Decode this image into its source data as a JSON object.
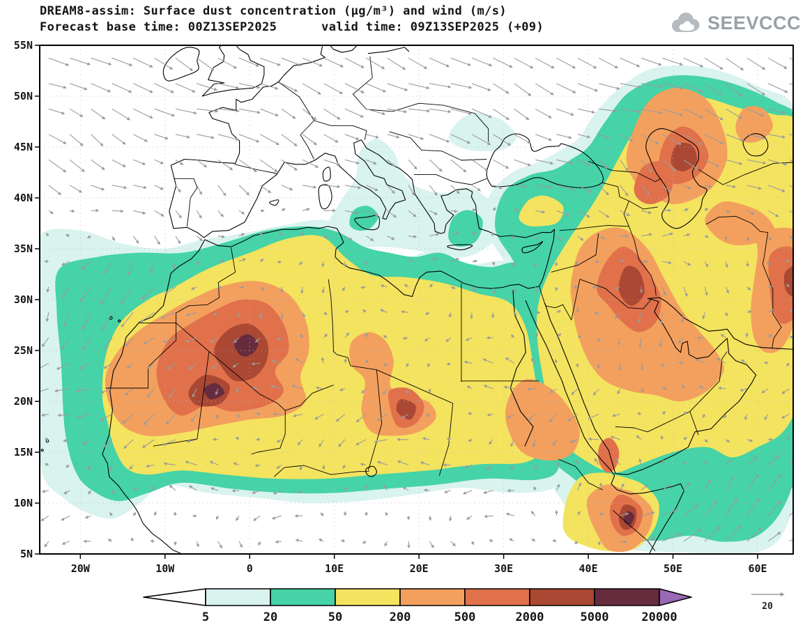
{
  "header": {
    "title_line1": "DREAM8-assim: Surface dust concentration (µg/m³) and wind (m/s)",
    "title_line2": "Forecast base time: 00Z13SEP2025      valid time: 09Z13SEP2025 (+09)",
    "logo_text": "SEEVCCC"
  },
  "axes": {
    "lat_labels": [
      "55N",
      "50N",
      "45N",
      "40N",
      "35N",
      "30N",
      "25N",
      "20N",
      "15N",
      "10N",
      "5N"
    ],
    "lon_labels": [
      "20W",
      "10W",
      "0",
      "10E",
      "20E",
      "30E",
      "40E",
      "50E",
      "60E"
    ]
  },
  "colorbar": {
    "labels": [
      "5",
      "20",
      "50",
      "200",
      "500",
      "2000",
      "5000",
      "20000"
    ],
    "colors": [
      "#ffffff",
      "#d9f3ef",
      "#45d3a7",
      "#f4e35f",
      "#f3a05e",
      "#e0714b",
      "#aa4833",
      "#662c3e",
      "#9a68b4"
    ]
  },
  "wind_reference": {
    "label": "20"
  },
  "chart_data": {
    "type": "heatmap",
    "title": "DREAM8-assim: Surface dust concentration (µg/m³) and wind (m/s)",
    "variable": "Surface dust concentration",
    "units": "µg/m³",
    "overlay": "surface wind vectors",
    "wind_units": "m/s",
    "wind_reference_ms": 20,
    "forecast_base_time": "00Z13SEP2025",
    "valid_time": "09Z13SEP2025 (+09)",
    "forecast_hour": "+09",
    "model": "DREAM8-assim",
    "provider_logo": "SEEVCCC",
    "lon_range_deg": [
      -25,
      64
    ],
    "lat_range_deg": [
      5,
      55
    ],
    "x_ticks": [
      "20W",
      "10W",
      "0",
      "10E",
      "20E",
      "30E",
      "40E",
      "50E",
      "60E"
    ],
    "y_ticks": [
      "55N",
      "50N",
      "45N",
      "40N",
      "35N",
      "30N",
      "25N",
      "20N",
      "15N",
      "10N",
      "5N"
    ],
    "contour_levels": [
      5,
      20,
      50,
      200,
      500,
      2000,
      5000,
      20000
    ],
    "level_colors": [
      "#ffffff",
      "#d9f3ef",
      "#45d3a7",
      "#f4e35f",
      "#f3a05e",
      "#e0714b",
      "#aa4833",
      "#662c3e",
      "#9a68b4"
    ],
    "legend_position": "bottom",
    "grid": "dotted graticule, 5-degree latitude / 10-degree longitude",
    "dust_maxima": [
      {
        "region": "Central Algeria - Mali Sahara",
        "approx_lon_lat": [
          0,
          25
        ],
        "concentration_ug_m3": "2000-5000 with local spots >5000"
      },
      {
        "region": "SW Libya / NW Chad",
        "approx_lon_lat": [
          18,
          19
        ],
        "concentration_ug_m3": "2000-5000"
      },
      {
        "region": "Iraq / northern Persian Gulf",
        "approx_lon_lat": [
          45,
          31
        ],
        "concentration_ug_m3": "2000-5000 core within 500-2000 plume"
      },
      {
        "region": "East of the Caspian Sea",
        "approx_lon_lat": [
          51,
          44
        ],
        "concentration_ug_m3": "2000-5000 core"
      },
      {
        "region": "Northern Somalia (Horn of Africa)",
        "approx_lon_lat": [
          45,
          9
        ],
        "concentration_ug_m3": "2000-5000 with spots >5000"
      },
      {
        "region": "Eastern map edge (Iran/Pakistan border)",
        "approx_lon_lat": [
          64,
          31
        ],
        "concentration_ug_m3": "500-5000"
      },
      {
        "region": "Southern Red Sea",
        "approx_lon_lat": [
          42.5,
          14.5
        ],
        "concentration_ug_m3": "500-2000"
      }
    ],
    "dust_background": [
      {
        "region": "Sahara from Mauritania to Egypt",
        "concentration_ug_m3": "50-200 with broad 200-500 plumes"
      },
      {
        "region": "Arabian Peninsula, Mesopotamia and Iran",
        "concentration_ug_m3": "50-200"
      },
      {
        "region": "Atlantic outflow west of Africa",
        "concentration_ug_m3": "5-50"
      },
      {
        "region": "Central/eastern Mediterranean, Turkey, Caucasus, Arabian Sea",
        "concentration_ug_m3": "5-50"
      }
    ],
    "wind_features": [
      {
        "region": "North Atlantic (top left)",
        "description": "strong westerly flow pointing ESE"
      },
      {
        "region": "Subtropical Atlantic off NW Africa",
        "description": "flow curving toward SW"
      },
      {
        "region": "Arabian Sea / Horn of Africa (bottom right)",
        "description": "strong monsoon flow pointing NE"
      },
      {
        "region": "Persian Gulf / Arabia",
        "description": "northerly shamal-like flow"
      }
    ]
  }
}
